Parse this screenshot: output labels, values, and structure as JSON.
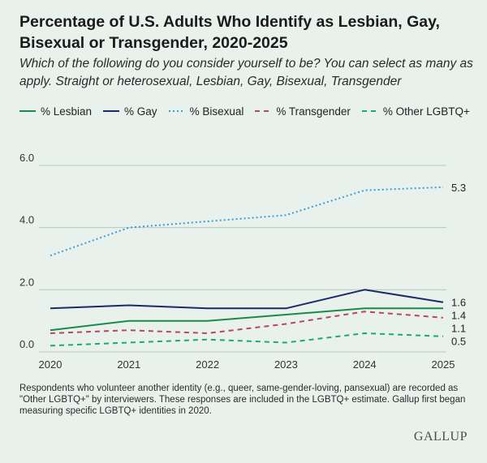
{
  "title": "Percentage of U.S. Adults Who Identify as Lesbian, Gay, Bisexual or Transgender, 2020-2025",
  "subtitle": "Which of the following do you consider yourself to be? You can select as many as apply. Straight or heterosexual, Lesbian, Gay, Bisexual, Transgender",
  "footnote": "Respondents who volunteer another identity (e.g., queer, same-gender-loving, pansexual) are recorded as \"Other LGBTQ+\" by interviewers. These responses are included in the LGBTQ+ estimate. Gallup first began measuring specific LGBTQ+ identities in 2020.",
  "logo": "GALLUP",
  "colors": {
    "background": "#e9f1ec",
    "grid": "#b9c7bf",
    "axis_text": "#333333"
  },
  "chart_data": {
    "type": "line",
    "x": [
      "2020",
      "2021",
      "2022",
      "2023",
      "2024",
      "2025"
    ],
    "ylim": [
      0,
      6.0
    ],
    "yticks": [
      "0.0",
      "2.0",
      "4.0",
      "6.0"
    ],
    "grid": "horizontal",
    "legend_position": "top",
    "series": [
      {
        "name": "% Lesbian",
        "values": [
          0.7,
          1.0,
          1.0,
          1.2,
          1.4,
          1.4
        ],
        "end_label": "1.4",
        "color": "#1a8a4a",
        "dash": "solid"
      },
      {
        "name": "% Gay",
        "values": [
          1.4,
          1.5,
          1.4,
          1.4,
          2.0,
          1.6
        ],
        "end_label": "1.6",
        "color": "#1b2a6b",
        "dash": "solid"
      },
      {
        "name": "% Bisexual",
        "values": [
          3.1,
          4.0,
          4.2,
          4.4,
          5.2,
          5.3
        ],
        "end_label": "5.3",
        "color": "#3a9fd8",
        "dash": "dotted"
      },
      {
        "name": "% Transgender",
        "values": [
          0.6,
          0.7,
          0.6,
          0.9,
          1.3,
          1.1
        ],
        "end_label": "1.1",
        "color": "#b5485e",
        "dash": "dashed"
      },
      {
        "name": "% Other LGBTQ+",
        "values": [
          0.2,
          0.3,
          0.4,
          0.3,
          0.6,
          0.5
        ],
        "end_label": "0.5",
        "color": "#1ba87a",
        "dash": "dashed"
      }
    ]
  }
}
